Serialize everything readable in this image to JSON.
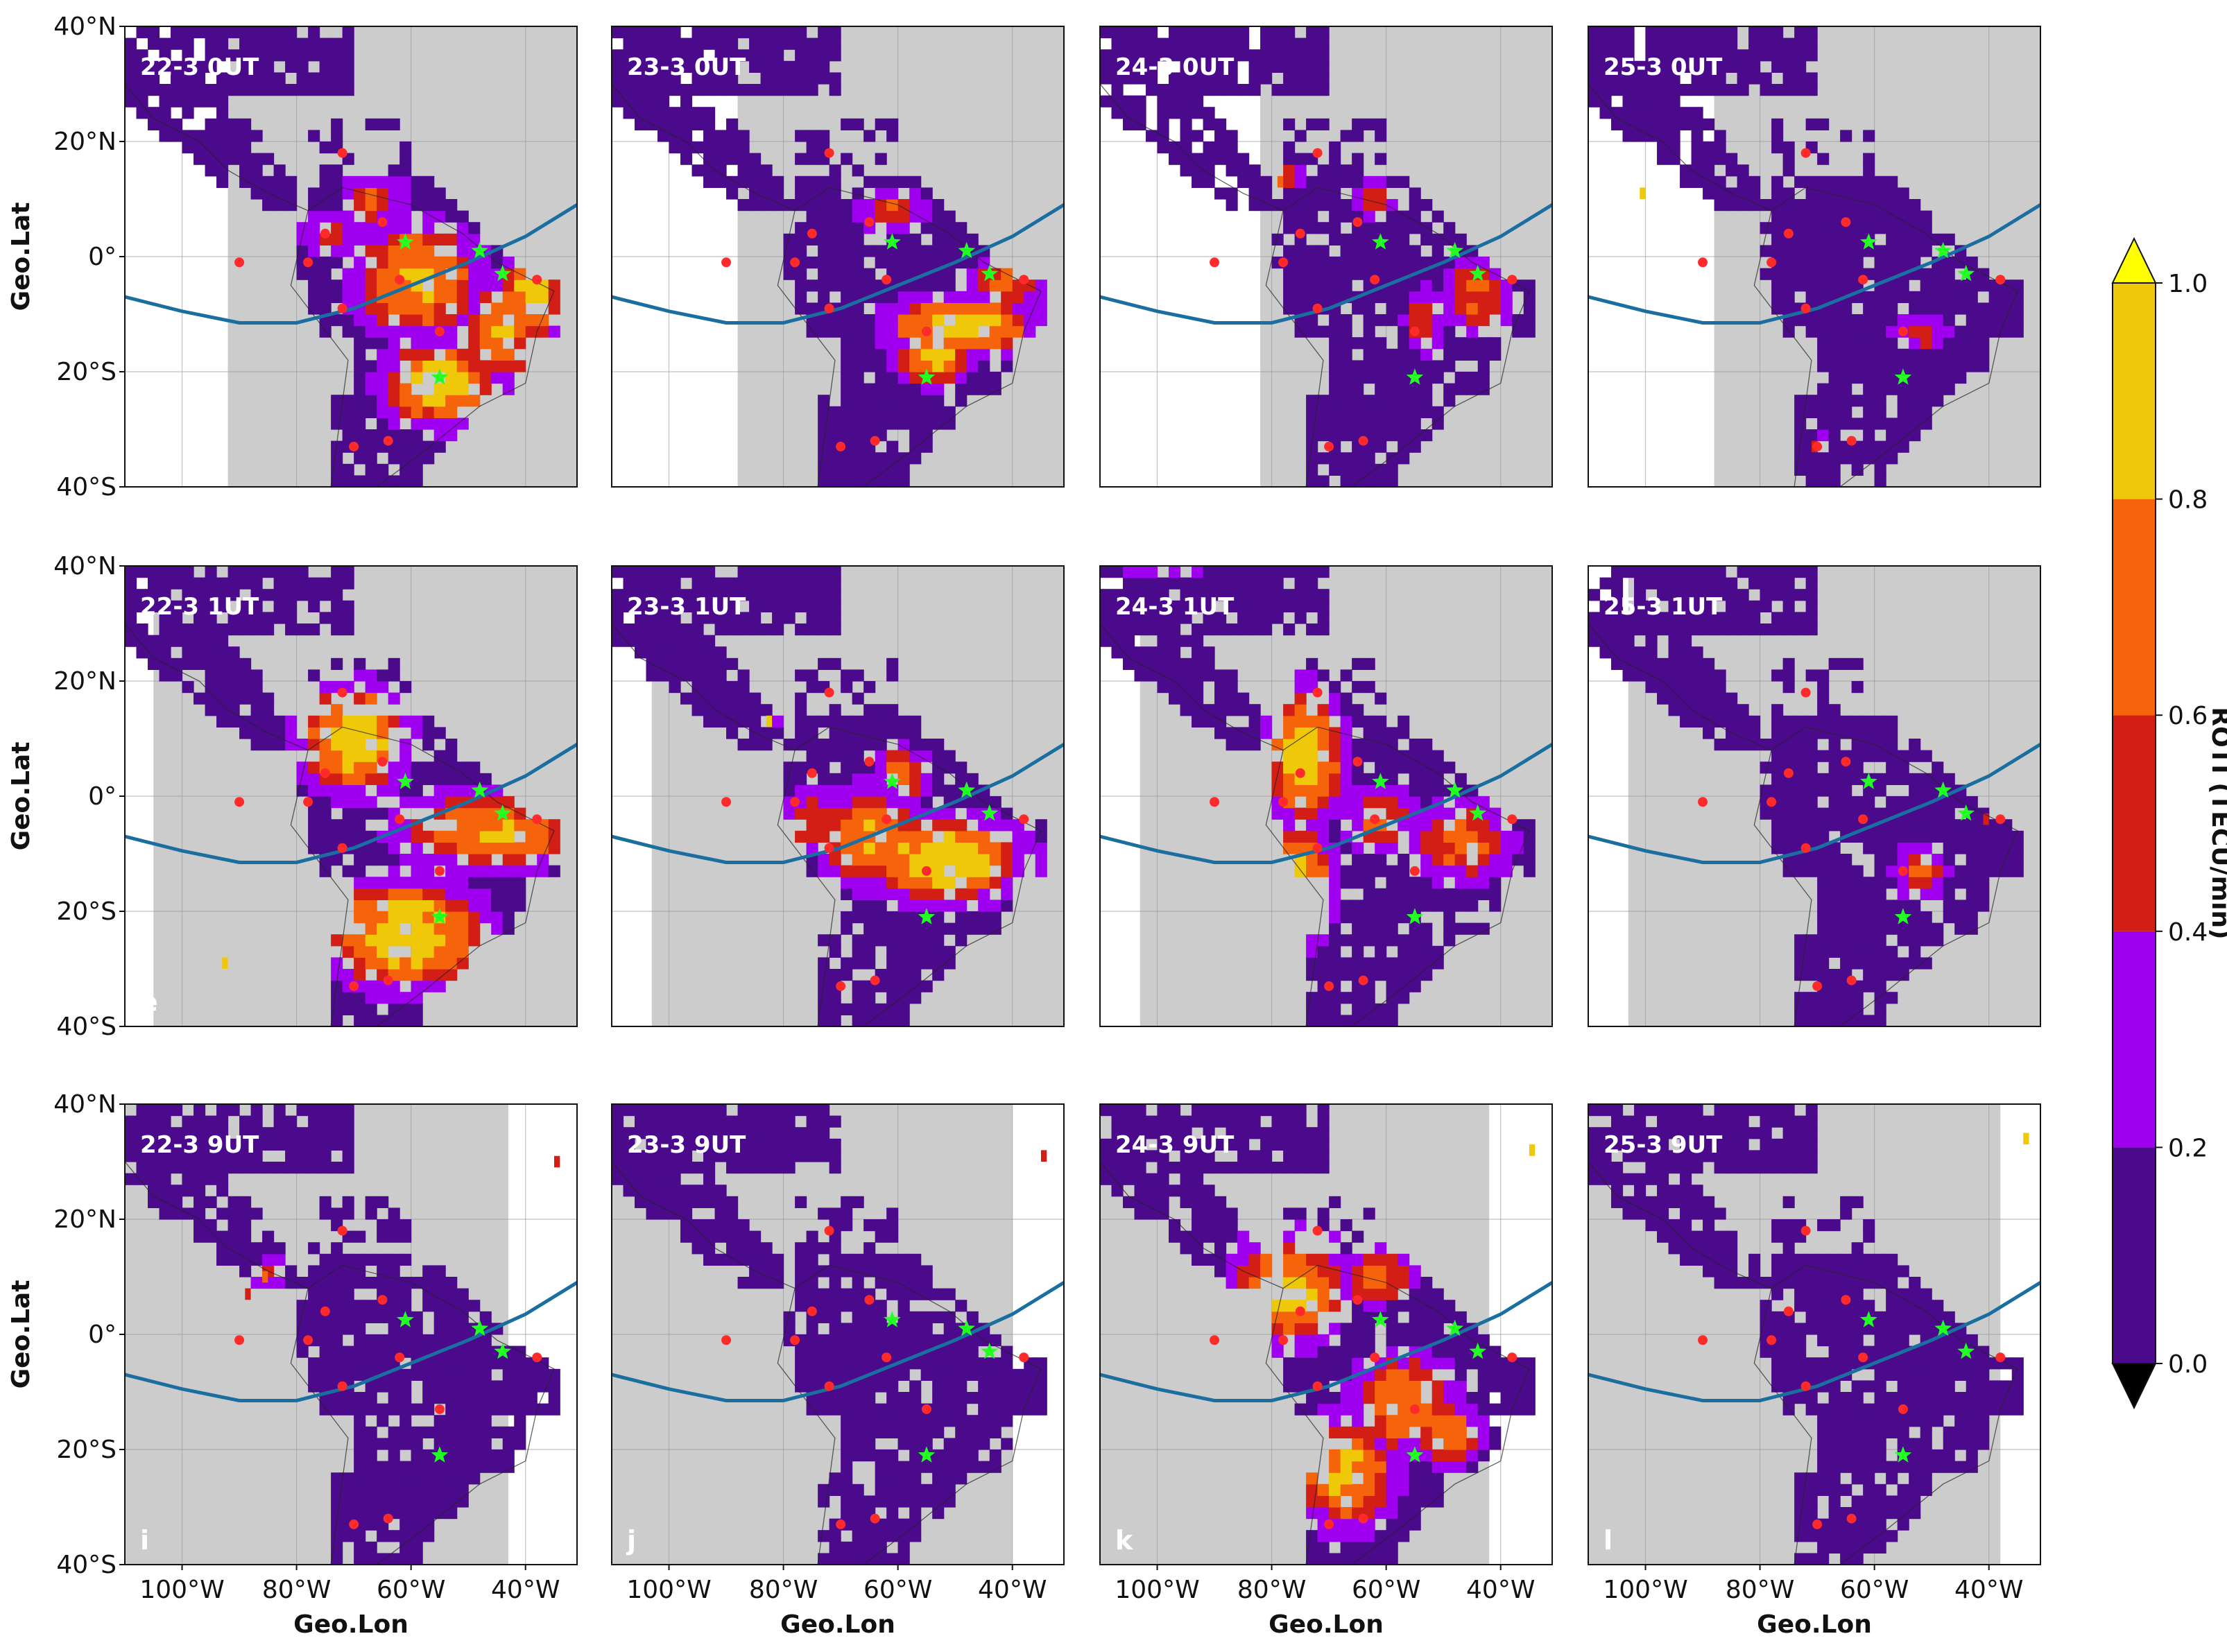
{
  "chart_data": {
    "type": "heatmap",
    "title": "",
    "xlabel": "Geo.Lon",
    "ylabel": "Geo.Lat",
    "x_ticks": [
      "100°W",
      "80°W",
      "60°W",
      "40°W"
    ],
    "x_tick_values": [
      -100,
      -80,
      -60,
      -40
    ],
    "y_ticks": [
      "40°N",
      "20°N",
      "0°",
      "20°S",
      "40°S"
    ],
    "y_tick_values": [
      40,
      20,
      0,
      -20,
      -40
    ],
    "xlim": [
      -110,
      -31
    ],
    "ylim": [
      -40,
      40
    ],
    "grid": true,
    "colorbar": {
      "label": "ROTI (TECU/min)",
      "ticks": [
        "0.0",
        "0.2",
        "0.4",
        "0.6",
        "0.8",
        "1.0"
      ],
      "tick_values": [
        0.0,
        0.2,
        0.4,
        0.6,
        0.8,
        1.0
      ],
      "levels": [
        {
          "range": [
            0.0,
            0.2
          ],
          "color": "#4b0a8c"
        },
        {
          "range": [
            0.2,
            0.4
          ],
          "color": "#a000f0"
        },
        {
          "range": [
            0.4,
            0.6
          ],
          "color": "#d21e14"
        },
        {
          "range": [
            0.6,
            0.8
          ],
          "color": "#f5640a"
        },
        {
          "range": [
            0.8,
            1.0
          ],
          "color": "#f0c80a"
        }
      ],
      "extend_low_color": "#000000",
      "extend_high_color": "#ffff00"
    },
    "colors": {
      "night_shade": "#cccccc",
      "magnetic_equator": "#1a6fa0",
      "station_markers": "#ff2a2a",
      "star_markers": "#22ff22"
    },
    "magnetic_equator_curve": [
      [
        -110,
        -7
      ],
      [
        -100,
        -9.5
      ],
      [
        -90,
        -11.5
      ],
      [
        -80,
        -11.5
      ],
      [
        -70,
        -9
      ],
      [
        -60,
        -5
      ],
      [
        -50,
        -1
      ],
      [
        -40,
        3.5
      ],
      [
        -31,
        9
      ]
    ],
    "stations": [
      [
        -72,
        18
      ],
      [
        -90,
        -1
      ],
      [
        -75,
        4
      ],
      [
        -78,
        -1
      ],
      [
        -65,
        6
      ],
      [
        -72,
        -9
      ],
      [
        -62,
        -4
      ],
      [
        -55,
        -13
      ],
      [
        -38,
        -4
      ],
      [
        -70,
        -33
      ],
      [
        -64,
        -32
      ]
    ],
    "stars": [
      [
        -61,
        2.5
      ],
      [
        -48,
        1
      ],
      [
        -44,
        -3
      ],
      [
        -55,
        -21
      ]
    ],
    "panels": [
      {
        "id": "a",
        "label": "22-3 0UT",
        "night_range": [
          -92,
          -31
        ],
        "activity": [
          [
            -60,
            -5,
            10,
            9,
            0.85
          ],
          [
            -56,
            -23,
            9,
            7,
            0.95
          ],
          [
            -40,
            -8,
            5,
            8,
            0.9
          ],
          [
            -45,
            -14,
            6,
            8,
            0.8
          ],
          [
            -67,
            9,
            5,
            4,
            0.6
          ],
          [
            -75,
            3,
            4,
            3,
            0.5
          ]
        ]
      },
      {
        "id": "b",
        "label": "23-3 0UT",
        "night_range": [
          -88,
          -31
        ],
        "activity": [
          [
            -50,
            -13,
            12,
            5,
            0.95
          ],
          [
            -55,
            -19,
            6,
            4,
            0.9
          ],
          [
            -62,
            7,
            5,
            3,
            0.6
          ],
          [
            -42,
            -6,
            6,
            4,
            0.7
          ]
        ]
      },
      {
        "id": "c",
        "label": "24-3 0UT",
        "night_range": [
          -82,
          -31
        ],
        "activity": [
          [
            -45,
            -8,
            5,
            6,
            0.65
          ],
          [
            -54,
            -12,
            3,
            5,
            0.55
          ],
          [
            -63,
            9,
            3,
            3,
            0.5
          ],
          [
            -78,
            13,
            2,
            2,
            0.6
          ]
        ]
      },
      {
        "id": "d",
        "label": "25-3 0UT",
        "night_range": [
          -88,
          -31
        ],
        "activity": [
          [
            -53,
            -14,
            4,
            3,
            0.5
          ],
          [
            -100,
            11,
            2,
            2,
            1.0
          ],
          [
            -70,
            -33,
            1,
            1,
            0.4
          ]
        ]
      },
      {
        "id": "e",
        "label": "22-3 1UT",
        "night_range": [
          -105,
          -31
        ],
        "activity": [
          [
            -62,
            -25,
            13,
            9,
            0.95
          ],
          [
            -71,
            9,
            9,
            9,
            0.95
          ],
          [
            -48,
            -7,
            14,
            6,
            0.8
          ],
          [
            -40,
            -8,
            5,
            5,
            0.7
          ],
          [
            -92,
            -29,
            1,
            1,
            0.9
          ]
        ]
      },
      {
        "id": "f",
        "label": "23-3 1UT",
        "night_range": [
          -103,
          -31
        ],
        "activity": [
          [
            -53,
            -12,
            13,
            7,
            0.95
          ],
          [
            -66,
            -8,
            8,
            8,
            0.8
          ],
          [
            -60,
            3,
            4,
            4,
            0.7
          ],
          [
            -76,
            -5,
            4,
            5,
            0.6
          ],
          [
            -82,
            13,
            1,
            1,
            0.9
          ]
        ]
      },
      {
        "id": "g",
        "label": "24-3 1UT",
        "night_range": [
          -103,
          -31
        ],
        "activity": [
          [
            -75,
            6,
            6,
            11,
            0.95
          ],
          [
            -76,
            -16,
            5,
            10,
            0.9
          ],
          [
            -48,
            -9,
            8,
            6,
            0.7
          ],
          [
            -62,
            -5,
            5,
            5,
            0.65
          ],
          [
            -100,
            39,
            6,
            2,
            0.5
          ]
        ]
      },
      {
        "id": "h",
        "label": "25-3 1UT",
        "night_range": [
          -103,
          -31
        ],
        "activity": [
          [
            -53,
            -14,
            4,
            4,
            0.6
          ],
          [
            -40,
            -4,
            1,
            1,
            0.5
          ]
        ]
      },
      {
        "id": "i",
        "label": "22-3 9UT",
        "night_range": [
          -110,
          -43
        ],
        "activity": [
          [
            -85,
            10,
            2,
            2,
            0.7
          ],
          [
            -34,
            30,
            1,
            1,
            0.55
          ],
          [
            -88,
            7,
            1,
            1,
            0.45
          ]
        ]
      },
      {
        "id": "j",
        "label": "23-3 9UT",
        "night_range": [
          -110,
          -40
        ],
        "activity": [
          [
            -34,
            31,
            1,
            1,
            0.55
          ]
        ]
      },
      {
        "id": "k",
        "label": "24-3 9UT",
        "night_range": [
          -110,
          -42
        ],
        "activity": [
          [
            -78,
            7,
            9,
            9,
            0.9
          ],
          [
            -68,
            -25,
            8,
            9,
            0.85
          ],
          [
            -58,
            -13,
            8,
            8,
            0.8
          ],
          [
            -63,
            9,
            6,
            4,
            0.7
          ],
          [
            -50,
            -18,
            5,
            5,
            0.75
          ],
          [
            -90,
            -1,
            3,
            3,
            0.6
          ],
          [
            -34,
            32,
            1,
            1,
            0.8
          ]
        ]
      },
      {
        "id": "l",
        "label": "25-3 9UT",
        "night_range": [
          -110,
          -38
        ],
        "activity": [
          [
            -33,
            34,
            1,
            1,
            0.8
          ]
        ]
      }
    ]
  }
}
